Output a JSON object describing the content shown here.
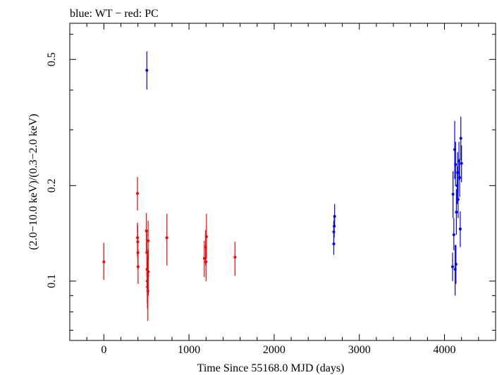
{
  "chart_data": {
    "type": "scatter",
    "title": "blue: WT − red: PC",
    "xlabel": "Time Since 55168.0 MJD (days)",
    "ylabel": "(2.0−10.0 keV)/(0.3−2.0 keV)",
    "xlim": [
      -400,
      4600
    ],
    "ylim": [
      0.065,
      0.65
    ],
    "yscale": "log",
    "grid": false,
    "legend": "none",
    "x_ticks": [
      0,
      1000,
      2000,
      3000,
      4000
    ],
    "x_tick_labels": [
      "0",
      "1000",
      "2000",
      "3000",
      "4000"
    ],
    "y_ticks": [
      0.1,
      0.2,
      0.5
    ],
    "y_tick_labels": [
      "0.1",
      "0.2",
      "0.5"
    ],
    "colors": {
      "PC": "#ff0000",
      "WT": "#0000ff"
    },
    "series": [
      {
        "name": "PC",
        "points": [
          {
            "x": 0,
            "y": 0.115,
            "lo": 0.101,
            "hi": 0.132
          },
          {
            "x": 395,
            "y": 0.189,
            "lo": 0.167,
            "hi": 0.213
          },
          {
            "x": 395,
            "y": 0.137,
            "lo": 0.12,
            "hi": 0.153
          },
          {
            "x": 398,
            "y": 0.133,
            "lo": 0.118,
            "hi": 0.15
          },
          {
            "x": 400,
            "y": 0.123,
            "lo": 0.109,
            "hi": 0.139
          },
          {
            "x": 402,
            "y": 0.111,
            "lo": 0.098,
            "hi": 0.126
          },
          {
            "x": 500,
            "y": 0.144,
            "lo": 0.124,
            "hi": 0.164
          },
          {
            "x": 505,
            "y": 0.123,
            "lo": 0.104,
            "hi": 0.145
          },
          {
            "x": 508,
            "y": 0.109,
            "lo": 0.094,
            "hi": 0.126
          },
          {
            "x": 510,
            "y": 0.1,
            "lo": 0.085,
            "hi": 0.116
          },
          {
            "x": 512,
            "y": 0.096,
            "lo": 0.082,
            "hi": 0.112
          },
          {
            "x": 515,
            "y": 0.104,
            "lo": 0.088,
            "hi": 0.12
          },
          {
            "x": 517,
            "y": 0.093,
            "lo": 0.075,
            "hi": 0.112
          },
          {
            "x": 520,
            "y": 0.134,
            "lo": 0.115,
            "hi": 0.155
          },
          {
            "x": 522,
            "y": 0.107,
            "lo": 0.09,
            "hi": 0.126
          },
          {
            "x": 740,
            "y": 0.137,
            "lo": 0.112,
            "hi": 0.163
          },
          {
            "x": 1180,
            "y": 0.118,
            "lo": 0.103,
            "hi": 0.134
          },
          {
            "x": 1195,
            "y": 0.128,
            "lo": 0.112,
            "hi": 0.145
          },
          {
            "x": 1200,
            "y": 0.115,
            "lo": 0.1,
            "hi": 0.13
          },
          {
            "x": 1205,
            "y": 0.138,
            "lo": 0.118,
            "hi": 0.163
          },
          {
            "x": 1540,
            "y": 0.119,
            "lo": 0.104,
            "hi": 0.133
          }
        ]
      },
      {
        "name": "WT",
        "points": [
          {
            "x": 505,
            "y": 0.462,
            "lo": 0.402,
            "hi": 0.53
          },
          {
            "x": 2700,
            "y": 0.131,
            "lo": 0.121,
            "hi": 0.141
          },
          {
            "x": 2700,
            "y": 0.143,
            "lo": 0.131,
            "hi": 0.155
          },
          {
            "x": 2705,
            "y": 0.149,
            "lo": 0.137,
            "hi": 0.161
          },
          {
            "x": 2710,
            "y": 0.16,
            "lo": 0.148,
            "hi": 0.175
          },
          {
            "x": 4095,
            "y": 0.111,
            "lo": 0.1,
            "hi": 0.123
          },
          {
            "x": 4100,
            "y": 0.188,
            "lo": 0.158,
            "hi": 0.222
          },
          {
            "x": 4110,
            "y": 0.14,
            "lo": 0.125,
            "hi": 0.158
          },
          {
            "x": 4120,
            "y": 0.26,
            "lo": 0.21,
            "hi": 0.32
          },
          {
            "x": 4125,
            "y": 0.109,
            "lo": 0.09,
            "hi": 0.13
          },
          {
            "x": 4130,
            "y": 0.233,
            "lo": 0.199,
            "hi": 0.275
          },
          {
            "x": 4135,
            "y": 0.113,
            "lo": 0.098,
            "hi": 0.13
          },
          {
            "x": 4140,
            "y": 0.165,
            "lo": 0.14,
            "hi": 0.195
          },
          {
            "x": 4150,
            "y": 0.2,
            "lo": 0.175,
            "hi": 0.23
          },
          {
            "x": 4155,
            "y": 0.22,
            "lo": 0.19,
            "hi": 0.255
          },
          {
            "x": 4160,
            "y": 0.181,
            "lo": 0.158,
            "hi": 0.208
          },
          {
            "x": 4170,
            "y": 0.239,
            "lo": 0.208,
            "hi": 0.275
          },
          {
            "x": 4178,
            "y": 0.212,
            "lo": 0.184,
            "hi": 0.243
          },
          {
            "x": 4185,
            "y": 0.146,
            "lo": 0.128,
            "hi": 0.166
          },
          {
            "x": 4192,
            "y": 0.282,
            "lo": 0.241,
            "hi": 0.33
          },
          {
            "x": 4200,
            "y": 0.235,
            "lo": 0.205,
            "hi": 0.268
          }
        ]
      }
    ]
  }
}
